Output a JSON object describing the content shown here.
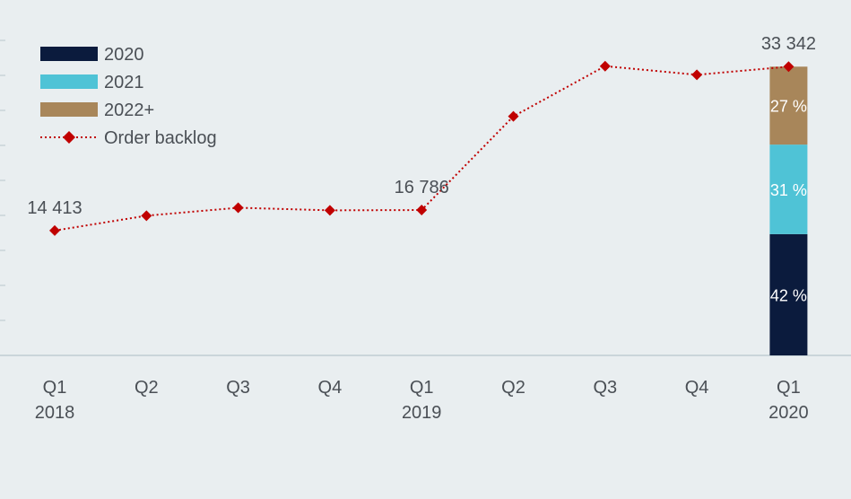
{
  "chart_data": {
    "type": "line",
    "title": "",
    "xlabel": "",
    "ylabel": "",
    "categories": [
      {
        "quarter": "Q1",
        "year": "2018"
      },
      {
        "quarter": "Q2",
        "year": ""
      },
      {
        "quarter": "Q3",
        "year": ""
      },
      {
        "quarter": "Q4",
        "year": ""
      },
      {
        "quarter": "Q1",
        "year": "2019"
      },
      {
        "quarter": "Q2",
        "year": ""
      },
      {
        "quarter": "Q3",
        "year": ""
      },
      {
        "quarter": "Q4",
        "year": ""
      },
      {
        "quarter": "Q1",
        "year": "2020"
      }
    ],
    "ylim": [
      0,
      40000
    ],
    "grid": false,
    "legend_position": "top-left",
    "series": [
      {
        "name": "Order backlog",
        "type": "line",
        "color": "#c00000",
        "values": [
          14413,
          16130,
          17050,
          16750,
          16786,
          27600,
          33400,
          32400,
          33342
        ],
        "value_labels": [
          "14 413",
          "",
          "",
          "",
          "16 786",
          "",
          "",
          "",
          "33 342"
        ]
      }
    ],
    "stacked_bar": {
      "category_index": 8,
      "total": 33342,
      "segments": [
        {
          "name": "2020",
          "share": 42,
          "label": "42 %",
          "color": "#0b1b3d"
        },
        {
          "name": "2021",
          "share": 31,
          "label": "31 %",
          "color": "#4fc3d6"
        },
        {
          "name": "2022+",
          "share": 27,
          "label": "27 %",
          "color": "#a8865a"
        }
      ]
    },
    "legend": [
      {
        "label": "2020",
        "kind": "box",
        "color": "#0b1b3d"
      },
      {
        "label": "2021",
        "kind": "box",
        "color": "#4fc3d6"
      },
      {
        "label": "2022+",
        "kind": "box",
        "color": "#a8865a"
      },
      {
        "label": "Order backlog",
        "kind": "line-marker",
        "color": "#c00000"
      }
    ]
  },
  "colors": {
    "background": "#e9eef0",
    "axis": "#b9c6cc",
    "text": "#4a4f55",
    "segment_text": "#ffffff"
  }
}
